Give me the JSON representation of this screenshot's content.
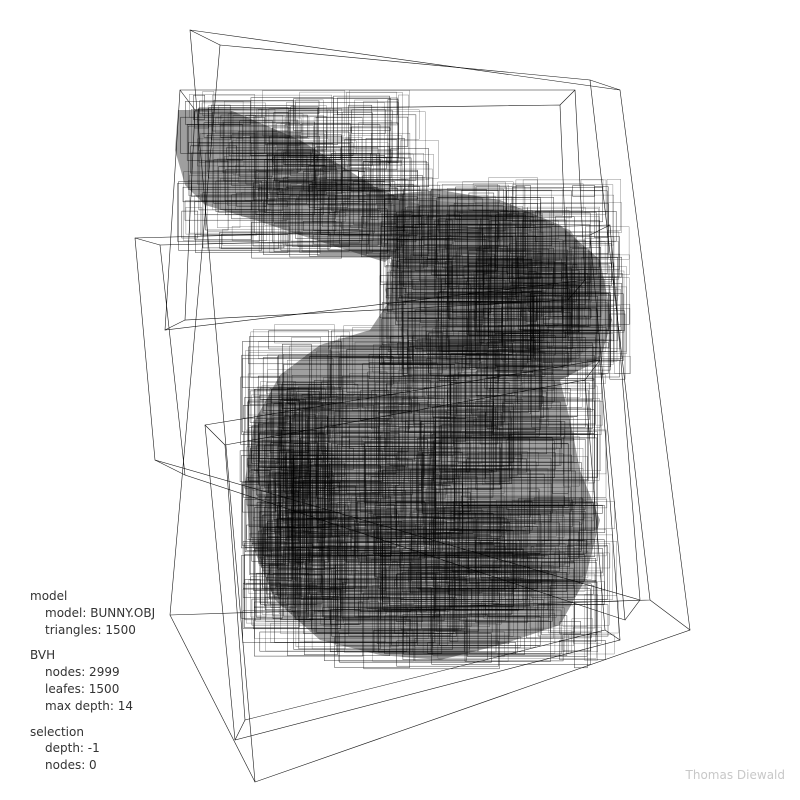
{
  "app": {
    "signature": "Thomas Diewald"
  },
  "info": {
    "model": {
      "title": "model",
      "file": "model: BUNNY.OBJ",
      "triangles": "triangles: 1500"
    },
    "bvh": {
      "title": "BVH",
      "nodes": "nodes: 2999",
      "leafes": "leafes: 1500",
      "max_depth": "max depth: 14"
    },
    "selection": {
      "title": "selection",
      "depth": "depth: -1",
      "nodes": "nodes: 0"
    }
  },
  "scene": {
    "background_color": "#ffffff",
    "model_fill_color": "#7f7f7f",
    "bbox_line_color": "#000000",
    "model_name": "bunny",
    "overlay": "bvh-bounding-boxes"
  }
}
